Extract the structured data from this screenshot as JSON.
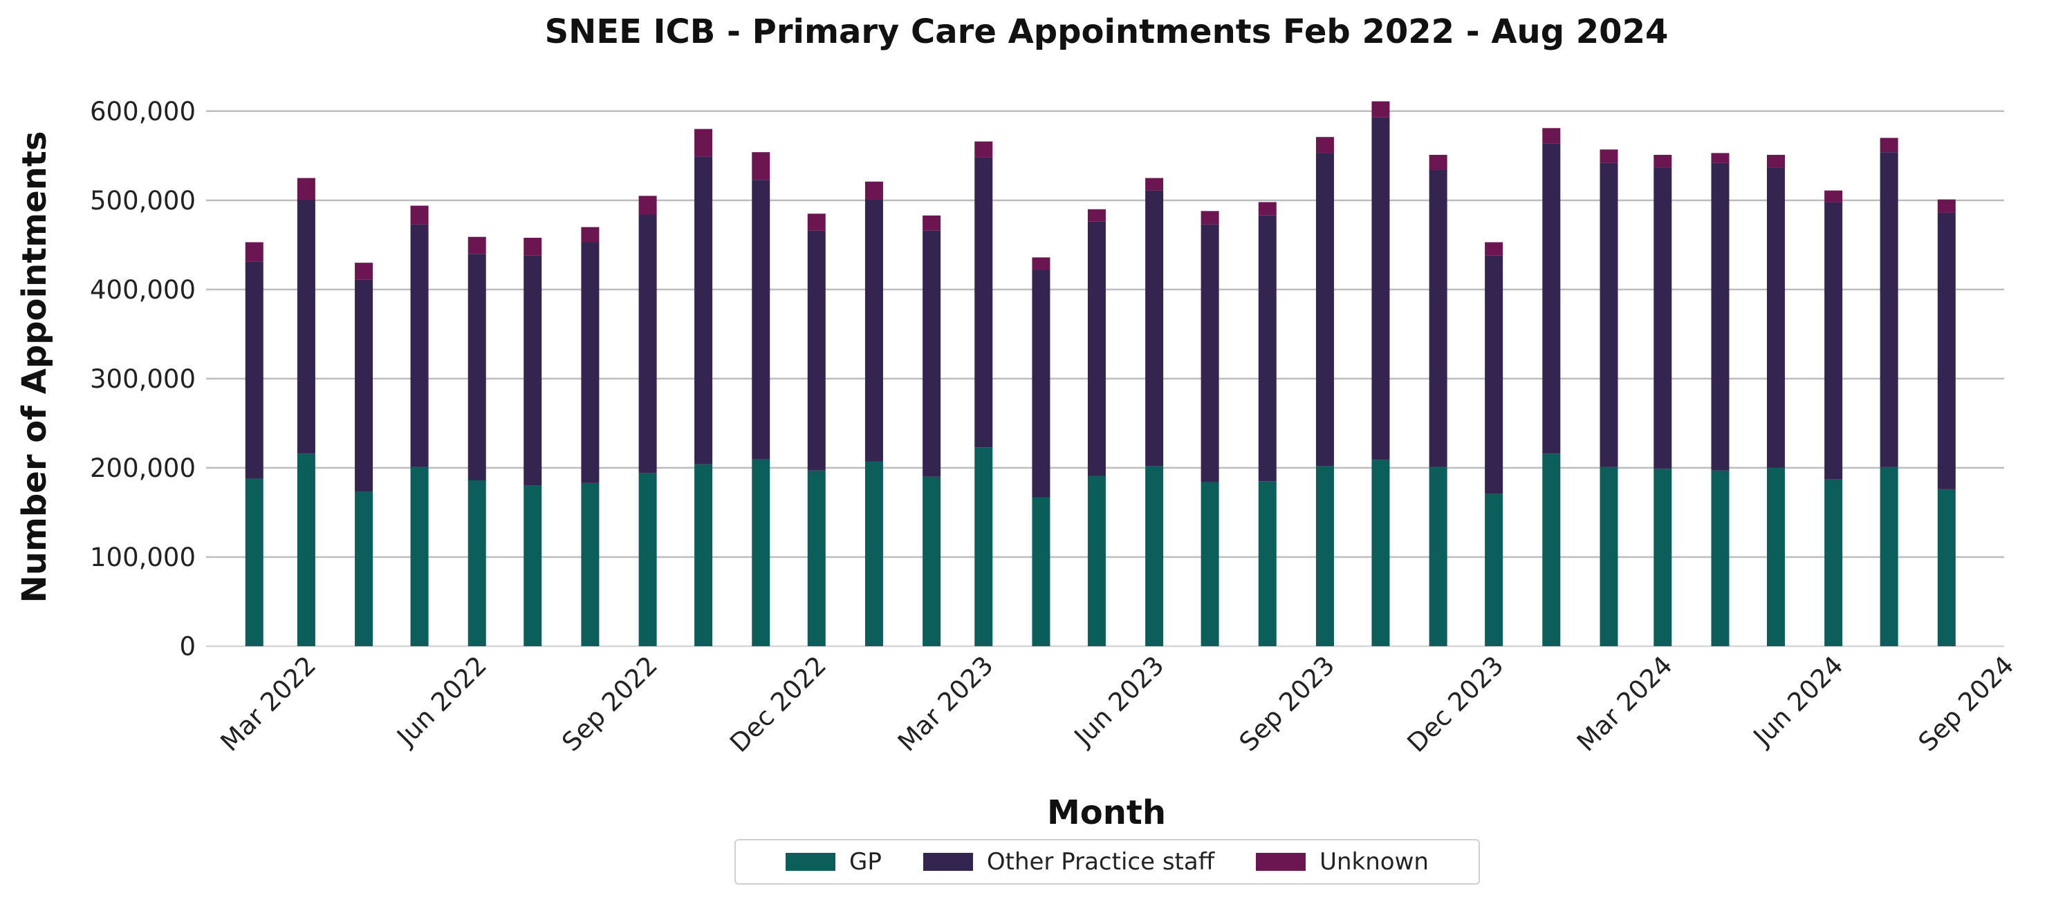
{
  "colors": {
    "GP": "#0b5e5a",
    "Other Practice staff": "#33254f",
    "Unknown": "#6b1650",
    "grid": "#bdbdbd",
    "text": "#111111"
  },
  "chart_data": {
    "type": "bar",
    "stacked": true,
    "title": "SNEE ICB - Primary Care Appointments Feb 2022 - Aug 2024",
    "xlabel": "Month",
    "ylabel": "Number of Appointments",
    "ylim": [
      0,
      620000
    ],
    "yticks": [
      0,
      100000,
      200000,
      300000,
      400000,
      500000,
      600000
    ],
    "ytick_labels": [
      "0",
      "100,000",
      "200,000",
      "300,000",
      "400,000",
      "500,000",
      "600,000"
    ],
    "x_tick_labels": [
      "Mar 2022",
      "Jun 2022",
      "Sep 2022",
      "Dec 2022",
      "Mar 2023",
      "Jun 2023",
      "Sep 2023",
      "Dec 2023",
      "Mar 2024",
      "Jun 2024",
      "Sep 2024"
    ],
    "x_tick_dates": [
      "2022-03-01",
      "2022-06-01",
      "2022-09-01",
      "2022-12-01",
      "2023-03-01",
      "2023-06-01",
      "2023-09-01",
      "2023-12-01",
      "2024-03-01",
      "2024-06-01",
      "2024-09-01"
    ],
    "x_range": [
      "2022-01-06",
      "2024-09-01"
    ],
    "categories": [
      "2022-02-01",
      "2022-03-01",
      "2022-04-01",
      "2022-05-01",
      "2022-06-01",
      "2022-07-01",
      "2022-08-01",
      "2022-09-01",
      "2022-10-01",
      "2022-11-01",
      "2022-12-01",
      "2023-01-01",
      "2023-02-01",
      "2023-03-01",
      "2023-04-01",
      "2023-05-01",
      "2023-06-01",
      "2023-07-01",
      "2023-08-01",
      "2023-09-01",
      "2023-10-01",
      "2023-11-01",
      "2023-12-01",
      "2024-01-01",
      "2024-02-01",
      "2024-03-01",
      "2024-04-01",
      "2024-05-01",
      "2024-06-01",
      "2024-07-01",
      "2024-08-01"
    ],
    "series": [
      {
        "name": "GP",
        "values": [
          188000,
          216000,
          173000,
          201000,
          186000,
          180000,
          183000,
          194000,
          204000,
          210000,
          197000,
          207000,
          190000,
          223000,
          167000,
          191000,
          202000,
          184000,
          185000,
          202000,
          209000,
          201000,
          171000,
          216000,
          201000,
          199000,
          197000,
          200000,
          187000,
          201000,
          176000
        ]
      },
      {
        "name": "Other Practice staff",
        "values": [
          243000,
          285000,
          238000,
          272000,
          254000,
          258000,
          270000,
          290000,
          345000,
          313000,
          269000,
          294000,
          276000,
          325000,
          255000,
          285000,
          309000,
          289000,
          298000,
          351000,
          384000,
          333000,
          267000,
          348000,
          341000,
          338000,
          345000,
          337000,
          311000,
          353000,
          310000
        ]
      },
      {
        "name": "Unknown",
        "values": [
          22000,
          24000,
          19000,
          21000,
          19000,
          20000,
          17000,
          21000,
          31000,
          31000,
          19000,
          20000,
          17000,
          18000,
          14000,
          14000,
          14000,
          15000,
          15000,
          18000,
          18000,
          17000,
          15000,
          17000,
          15000,
          14000,
          11000,
          14000,
          13000,
          16000,
          15000
        ]
      }
    ],
    "grid": "y",
    "legend_position": "bottom-center"
  },
  "legend": [
    {
      "label": "GP",
      "color": "#0b5e5a"
    },
    {
      "label": "Other Practice staff",
      "color": "#33254f"
    },
    {
      "label": "Unknown",
      "color": "#6b1650"
    }
  ]
}
